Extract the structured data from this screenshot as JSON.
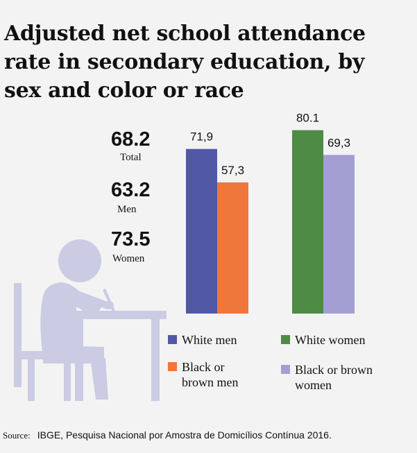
{
  "title": "Adjusted net school attendance rate in secondary education, by sex and color or race",
  "stats": [
    {
      "value": "68.2",
      "label": "Total"
    },
    {
      "value": "63.2",
      "label": "Men"
    },
    {
      "value": "73.5",
      "label": "Women"
    }
  ],
  "chart_data": {
    "type": "bar",
    "title": "Adjusted net school attendance rate in secondary education, by sex and color or race",
    "xlabel": "",
    "ylabel": "",
    "ylim": [
      0,
      100
    ],
    "grid": false,
    "legend_position": "bottom",
    "series": [
      {
        "name": "White men",
        "value": 71.9,
        "label": "71,9",
        "color": "#5159a6",
        "group": "men"
      },
      {
        "name": "Black or brown men",
        "value": 57.3,
        "label": "57,3",
        "color": "#ef773b",
        "group": "men"
      },
      {
        "name": "White women",
        "value": 80.1,
        "label": "80.1",
        "color": "#4e8b45",
        "group": "women"
      },
      {
        "name": "Black or brown women",
        "value": 69.3,
        "label": "69,3",
        "color": "#a39fd3",
        "group": "women"
      }
    ]
  },
  "legend": [
    {
      "label": "White men",
      "color": "#5159a6"
    },
    {
      "label": "White women",
      "color": "#4e8b45"
    },
    {
      "label": "Black or\nbrown men",
      "color": "#ef773b"
    },
    {
      "label": "Black or brown\nwomen",
      "color": "#a39fd3"
    }
  ],
  "illustration_color": "#cbcbe4",
  "source": {
    "label": "Source:",
    "text": "IBGE, Pesquisa Nacional por Amostra de Domicílios Contínua 2016."
  }
}
